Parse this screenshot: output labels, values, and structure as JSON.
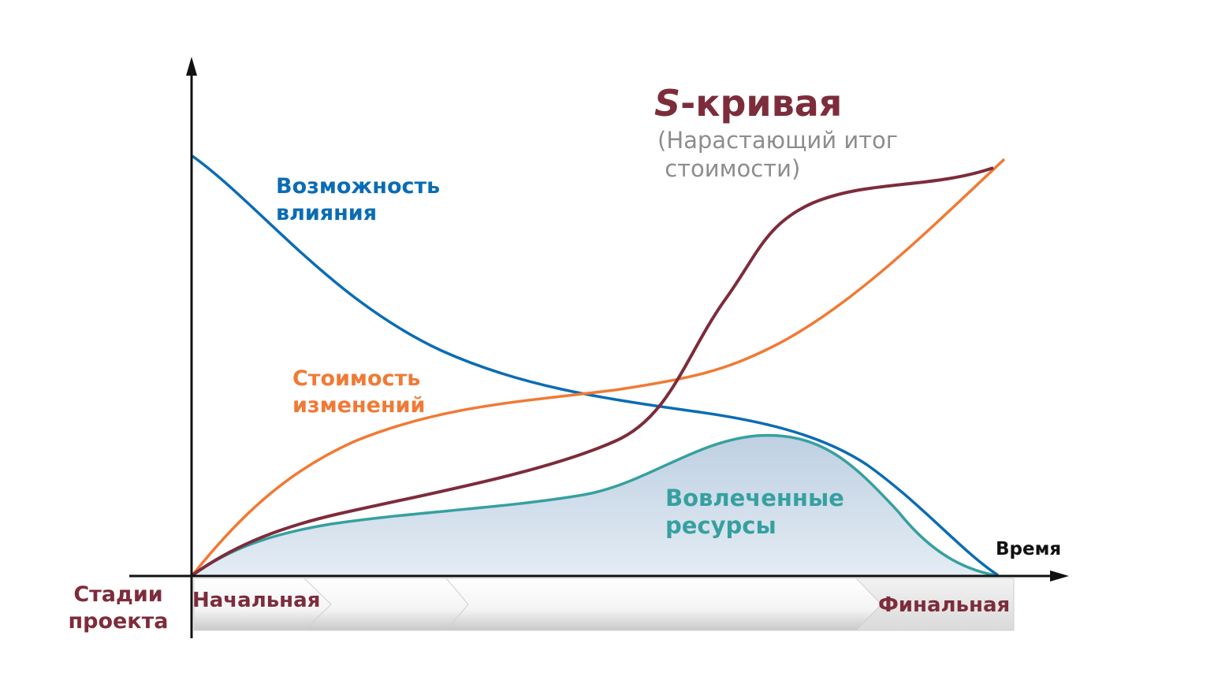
{
  "title": {
    "prefix": "S",
    "rest": "-кривая",
    "subtitle": "(Нарастающий итог\n стоимости)"
  },
  "labels": {
    "influence_line1": "Возможность",
    "influence_line2": "влияния",
    "change_cost_line1": "Стоимость",
    "change_cost_line2": "изменений",
    "resources_line1": "Вовлеченные",
    "resources_line2": "ресурсы",
    "x_axis": "Время"
  },
  "stages": {
    "label_line1": "Стадии",
    "label_line2": "проекта",
    "start": "Начальная",
    "end": "Финальная"
  },
  "colors": {
    "influence": "#0b6cb4",
    "change_cost": "#f07a35",
    "s_curve": "#7d2c3b",
    "resources": "#36a0a0",
    "resources_fill": "#d6e1ec",
    "axis": "#111111"
  }
}
